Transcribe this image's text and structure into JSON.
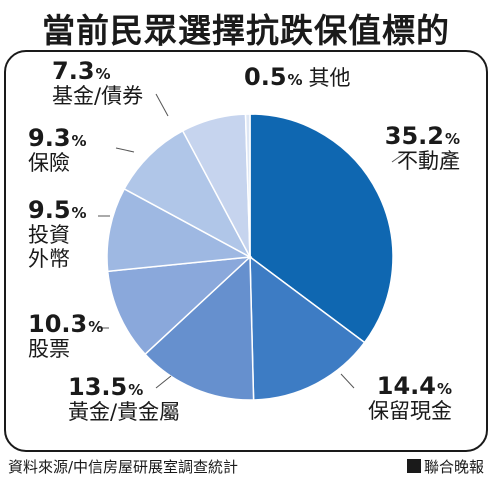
{
  "title": "當前民眾選擇抗跌保值標的",
  "chart_data": {
    "type": "pie",
    "slices": [
      {
        "label": "不動產",
        "value": 35.2,
        "color": "#0f67b1"
      },
      {
        "label": "保留現金",
        "value": 14.4,
        "color": "#3d7cc4"
      },
      {
        "label": "黃金/貴金屬",
        "value": 13.5,
        "color": "#6690ce"
      },
      {
        "label": "股票",
        "value": 10.3,
        "color": "#8aa8db"
      },
      {
        "label": "投資外幣",
        "value": 9.5,
        "color": "#9eb8e2"
      },
      {
        "label": "保險",
        "value": 9.3,
        "color": "#b0c6e8"
      },
      {
        "label": "基金/債券",
        "value": 7.3,
        "color": "#c6d4ee"
      },
      {
        "label": "其他",
        "value": 0.5,
        "color": "#dde6f4"
      }
    ],
    "label_lines": [
      [
        "不動產"
      ],
      [
        "保留現金"
      ],
      [
        "黃金/貴金屬"
      ],
      [
        "股票"
      ],
      [
        "投資",
        "外幣"
      ],
      [
        "保險"
      ],
      [
        "基金/債券"
      ],
      [
        "其他"
      ]
    ],
    "unit": "%"
  },
  "footer": {
    "source": "資料來源/中信房屋研展室調查統計",
    "brand": "聯合晚報"
  }
}
